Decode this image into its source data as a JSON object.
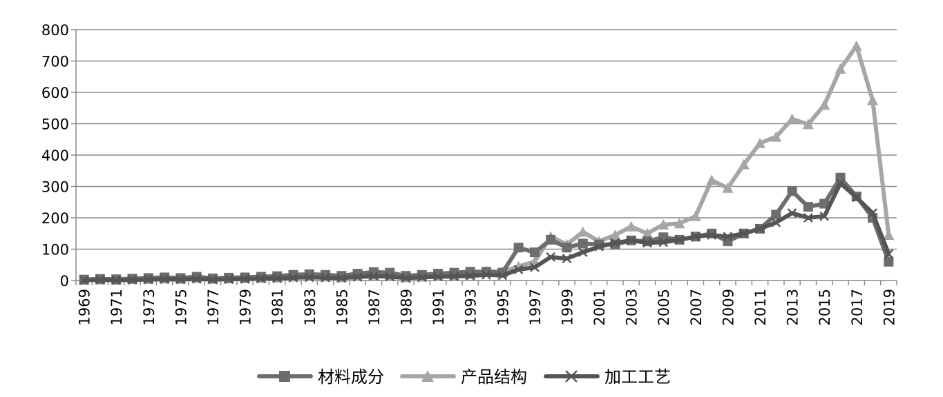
{
  "chart_data": {
    "type": "line",
    "x": [
      1969,
      1970,
      1971,
      1972,
      1973,
      1974,
      1975,
      1976,
      1977,
      1978,
      1979,
      1980,
      1981,
      1982,
      1983,
      1984,
      1985,
      1986,
      1987,
      1988,
      1989,
      1990,
      1991,
      1992,
      1993,
      1994,
      1995,
      1996,
      1997,
      1998,
      1999,
      2000,
      2001,
      2002,
      2003,
      2004,
      2005,
      2006,
      2007,
      2008,
      2009,
      2010,
      2011,
      2012,
      2013,
      2014,
      2015,
      2016,
      2017,
      2018,
      2019
    ],
    "x_tick_labels": [
      "1969",
      "1971",
      "1973",
      "1975",
      "1977",
      "1979",
      "1981",
      "1983",
      "1985",
      "1987",
      "1989",
      "1991",
      "1993",
      "1995",
      "1997",
      "1999",
      "2001",
      "2003",
      "2005",
      "2007",
      "2009",
      "2011",
      "2013",
      "2015",
      "2017",
      "2019"
    ],
    "y_ticks": [
      "0",
      "100",
      "200",
      "300",
      "400",
      "500",
      "600",
      "700",
      "800"
    ],
    "ylim": [
      0,
      800
    ],
    "grid": true,
    "legend_position": "bottom",
    "series": [
      {
        "name": "材料成分",
        "color": "#6d6d6d",
        "marker": "square",
        "values": [
          3,
          5,
          4,
          6,
          8,
          10,
          8,
          12,
          7,
          9,
          10,
          12,
          14,
          18,
          20,
          18,
          15,
          22,
          27,
          25,
          15,
          18,
          22,
          25,
          28,
          28,
          25,
          105,
          90,
          130,
          105,
          118,
          115,
          115,
          128,
          125,
          138,
          130,
          140,
          150,
          125,
          150,
          165,
          210,
          285,
          235,
          245,
          328,
          268,
          200,
          60
        ]
      },
      {
        "name": "产品结构",
        "color": "#a6a6a6",
        "marker": "triangle",
        "values": [
          2,
          3,
          2,
          4,
          5,
          6,
          5,
          8,
          5,
          6,
          7,
          8,
          9,
          12,
          14,
          12,
          10,
          14,
          18,
          15,
          10,
          12,
          14,
          16,
          20,
          30,
          28,
          45,
          60,
          140,
          115,
          155,
          125,
          145,
          172,
          150,
          178,
          182,
          205,
          320,
          295,
          370,
          438,
          458,
          515,
          498,
          560,
          675,
          748,
          575,
          145
        ]
      },
      {
        "name": "加工工艺",
        "color": "#555555",
        "marker": "x",
        "values": [
          1,
          2,
          1,
          2,
          3,
          4,
          3,
          5,
          3,
          4,
          5,
          6,
          7,
          9,
          10,
          9,
          8,
          11,
          14,
          12,
          8,
          10,
          12,
          13,
          15,
          18,
          16,
          35,
          42,
          75,
          70,
          90,
          108,
          120,
          128,
          120,
          122,
          130,
          140,
          145,
          140,
          150,
          165,
          185,
          215,
          200,
          205,
          310,
          265,
          215,
          85
        ]
      }
    ]
  }
}
